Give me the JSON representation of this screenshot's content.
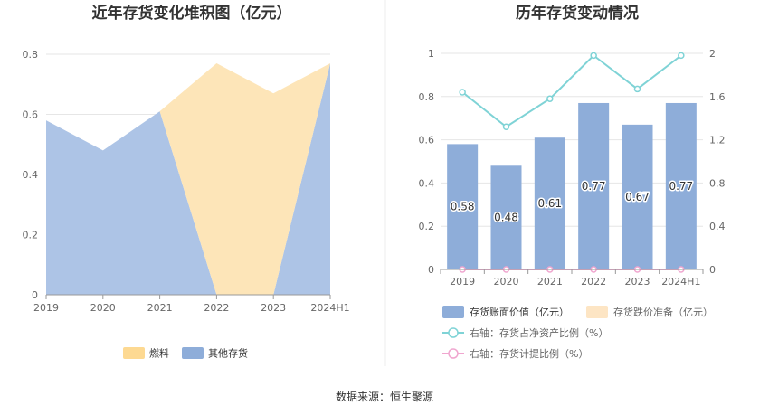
{
  "chart_data": [
    {
      "type": "area",
      "stacked": true,
      "title": "近年存货变化堆积图（亿元）",
      "categories": [
        "2019",
        "2020",
        "2021",
        "2022",
        "2023",
        "2024H1"
      ],
      "yticks": [
        "0",
        "0.2",
        "0.4",
        "0.6",
        "0.8"
      ],
      "ylim": [
        0,
        0.8
      ],
      "series": [
        {
          "name": "其他存货",
          "values": [
            0.58,
            0.48,
            0.61,
            0,
            0,
            0.77
          ],
          "color": "#adc4e6"
        },
        {
          "name": "燃料",
          "values": [
            0,
            0,
            0,
            0.77,
            0.67,
            0
          ],
          "color": "#fde5b8"
        }
      ],
      "legend": [
        {
          "name": "燃料",
          "color": "#fdd992"
        },
        {
          "name": "其他存货",
          "color": "#8eadd9"
        }
      ]
    },
    {
      "type": "bar+line",
      "title": "历年存货变动情况",
      "categories": [
        "2019",
        "2020",
        "2021",
        "2022",
        "2023",
        "2024H1"
      ],
      "yticks_left": [
        "0",
        "0.2",
        "0.4",
        "0.6",
        "0.8",
        "1"
      ],
      "yticks_right": [
        "0",
        "0.4",
        "0.8",
        "1.2",
        "1.6",
        "2"
      ],
      "ylim_left": [
        0,
        1
      ],
      "ylim_right": [
        0,
        2
      ],
      "bars": [
        {
          "name": "存货账面价值（亿元）",
          "values": [
            0.58,
            0.48,
            0.61,
            0.77,
            0.67,
            0.77
          ],
          "labels": [
            "0.58",
            "0.48",
            "0.61",
            "0.77",
            "0.67",
            "0.77"
          ],
          "color": "#8eadd9"
        },
        {
          "name": "存货跌价准备（亿元）",
          "values": [
            0,
            0,
            0,
            0,
            0,
            0
          ],
          "color": "#fde5c4"
        }
      ],
      "lines": [
        {
          "name": "右轴：存货占净资产比例（%）",
          "values": [
            1.64,
            1.32,
            1.58,
            1.98,
            1.67,
            1.98
          ],
          "color": "#7fd3d6"
        },
        {
          "name": "右轴：存货计提比例（%）",
          "values": [
            0,
            0,
            0,
            0,
            0,
            0
          ],
          "color": "#f0a6cf"
        }
      ]
    }
  ],
  "footer": {
    "source": "数据来源：恒生聚源"
  }
}
